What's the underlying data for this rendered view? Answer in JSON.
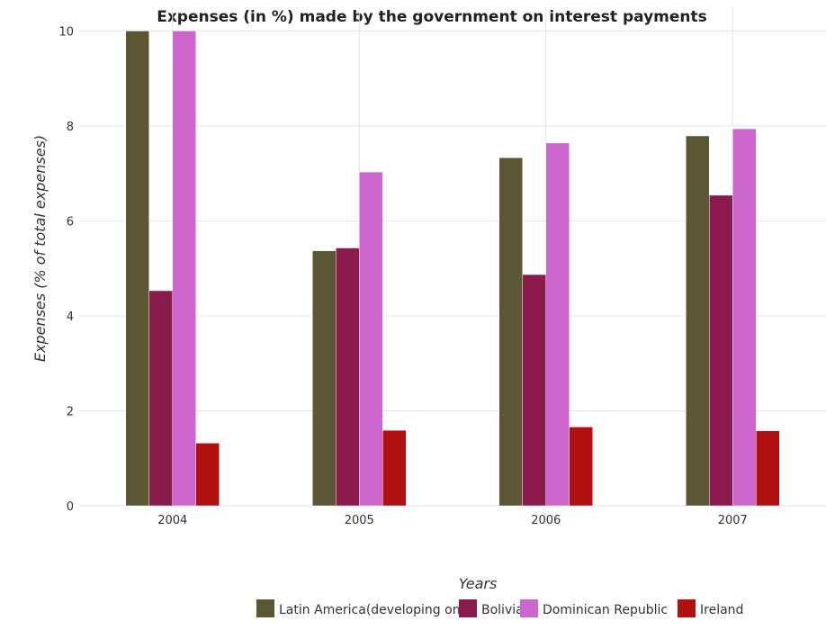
{
  "chart_data": {
    "type": "bar",
    "title": "Expenses (in %) made by the government on interest payments",
    "xlabel": "Years",
    "ylabel": "Expenses (% of total expenses)",
    "categories": [
      "2004",
      "2005",
      "2006",
      "2007"
    ],
    "ylim": [
      0,
      10.5
    ],
    "yticks": [
      0,
      2,
      4,
      6,
      8,
      10
    ],
    "grid": true,
    "legend_position": "bottom-right",
    "series": [
      {
        "name": "Latin America(developing only)",
        "color": "#5b5735",
        "values": [
          10.0,
          5.37,
          7.33,
          7.79
        ]
      },
      {
        "name": "Bolivia",
        "color": "#8b1a4d",
        "values": [
          4.53,
          5.43,
          4.87,
          6.54
        ]
      },
      {
        "name": "Dominican Republic",
        "color": "#cc66cc",
        "values": [
          10.0,
          7.03,
          7.64,
          7.94
        ]
      },
      {
        "name": "Ireland",
        "color": "#b01010",
        "values": [
          1.32,
          1.59,
          1.66,
          1.58
        ]
      }
    ]
  }
}
